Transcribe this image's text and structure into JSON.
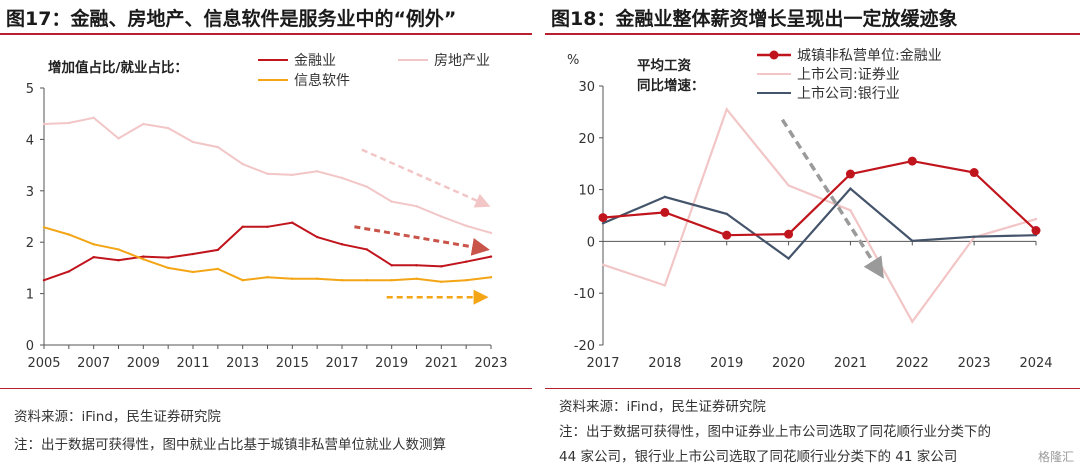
{
  "left": {
    "title": "图17：金融、房地产、信息软件是服务业中的“例外”",
    "source": "资料来源：iFind，民生证券研究院",
    "note": "注：出于数据可获得性，图中就业占比基于城镇非私营单位就业人数测算"
  },
  "right": {
    "title": "图18：金融业整体薪资增长呈现出一定放缓迹象",
    "source": "资料来源：iFind，民生证券研究院",
    "note_line1": "注：出于数据可获得性，图中证券业上市公司选取了同花顺行业分类下的",
    "note_line2": "44 家公司，银行业上市公司选取了同花顺行业分类下的 41 家公司"
  },
  "watermark": "格隆汇",
  "colors": {
    "finance": "#c0151d",
    "realestate": "#f2c6c6",
    "software": "#f3a515",
    "bank": "#44546a",
    "axis": "#555555",
    "title_rule": "#b8202f"
  },
  "chart_data": [
    {
      "type": "line",
      "annotation": "增加值占比/就业占比：",
      "x": [
        2005,
        2006,
        2007,
        2008,
        2009,
        2010,
        2011,
        2012,
        2013,
        2014,
        2015,
        2016,
        2017,
        2018,
        2019,
        2020,
        2021,
        2022,
        2023
      ],
      "xticks": [
        "2005",
        "2007",
        "2009",
        "2011",
        "2013",
        "2015",
        "2017",
        "2019",
        "2021",
        "2023"
      ],
      "ylim": [
        0,
        5
      ],
      "yticks": [
        "0",
        "1",
        "2",
        "3",
        "4",
        "5"
      ],
      "series": [
        {
          "name": "金融业",
          "key": "finance",
          "values": [
            1.26,
            1.43,
            1.71,
            1.65,
            1.72,
            1.7,
            1.77,
            1.85,
            2.3,
            2.3,
            2.38,
            2.1,
            1.96,
            1.86,
            1.55,
            1.55,
            1.53,
            1.62,
            1.72
          ]
        },
        {
          "name": "房地产业",
          "key": "realestate",
          "values": [
            4.3,
            4.32,
            4.42,
            4.02,
            4.3,
            4.22,
            3.95,
            3.85,
            3.52,
            3.33,
            3.31,
            3.38,
            3.25,
            3.08,
            2.79,
            2.7,
            2.5,
            2.32,
            2.18
          ]
        },
        {
          "name": "信息软件",
          "key": "software",
          "values": [
            2.29,
            2.15,
            1.96,
            1.86,
            1.67,
            1.5,
            1.42,
            1.48,
            1.26,
            1.32,
            1.29,
            1.29,
            1.26,
            1.26,
            1.26,
            1.29,
            1.23,
            1.26,
            1.32
          ]
        }
      ],
      "trend_arrows": [
        "realestate-down",
        "finance-down",
        "software-flat"
      ]
    },
    {
      "type": "line",
      "ylabel": "%",
      "annotation_line1": "平均工资",
      "annotation_line2": "同比增速：",
      "x": [
        2017,
        2018,
        2019,
        2020,
        2021,
        2022,
        2023,
        2024
      ],
      "xticks": [
        "2017",
        "2018",
        "2019",
        "2020",
        "2021",
        "2022",
        "2023",
        "2024"
      ],
      "ylim": [
        -20,
        30
      ],
      "yticks": [
        "30",
        "20",
        "10",
        "0",
        "-10",
        "-20"
      ],
      "series": [
        {
          "name": "城镇非私营单位:金融业",
          "key": "finance",
          "markers": true,
          "values": [
            4.6,
            5.6,
            1.2,
            1.4,
            13.0,
            15.5,
            13.3,
            2.1
          ]
        },
        {
          "name": "上市公司:证券业",
          "key": "realestate",
          "values": [
            -4.5,
            -8.5,
            25.5,
            10.8,
            6.0,
            -15.5,
            0.8,
            4.3
          ]
        },
        {
          "name": "上市公司:银行业",
          "key": "bank",
          "values": [
            3.5,
            8.6,
            5.3,
            -3.3,
            10.2,
            0.1,
            0.9,
            1.2
          ]
        }
      ],
      "trend_arrows": [
        "grey-down"
      ]
    }
  ]
}
